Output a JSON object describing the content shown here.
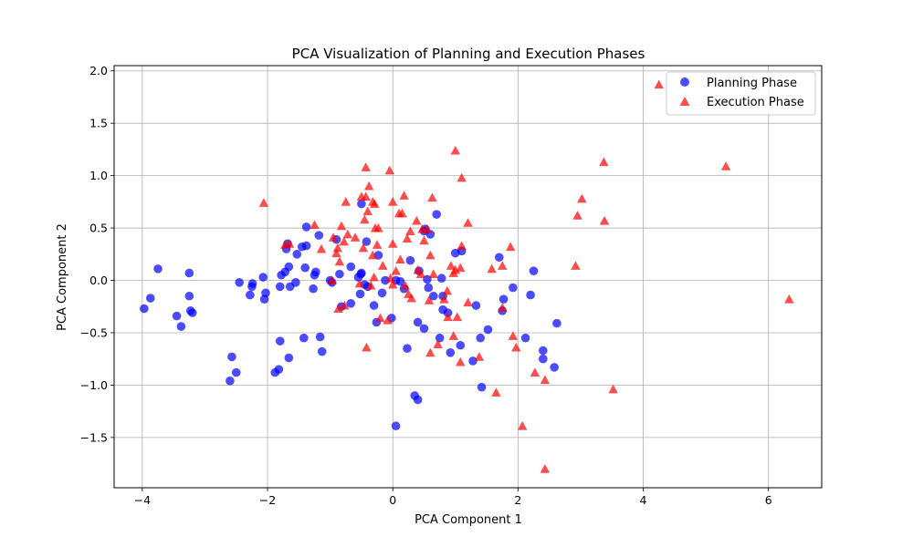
{
  "chart_data": {
    "type": "scatter",
    "title": "PCA Visualization of Planning and Execution Phases",
    "xlabel": "PCA Component 1",
    "ylabel": "PCA Component 2",
    "xlim": [
      -4.45,
      6.85
    ],
    "ylim": [
      -1.98,
      2.05
    ],
    "xticks": [
      -4,
      -2,
      0,
      2,
      4,
      6
    ],
    "xtick_labels": [
      "−4",
      "−2",
      "0",
      "2",
      "4",
      "6"
    ],
    "yticks": [
      -1.5,
      -1.0,
      -0.5,
      0.0,
      0.5,
      1.0,
      1.5,
      2.0
    ],
    "ytick_labels": [
      "−1.5",
      "−1.0",
      "−0.5",
      "0.0",
      "0.5",
      "1.0",
      "1.5",
      "2.0"
    ],
    "grid": true,
    "legend_position": "top-right",
    "series": [
      {
        "name": "Planning Phase",
        "marker": "circle",
        "color": "#0000ff",
        "points": [
          [
            -3.97,
            -0.27
          ],
          [
            -3.87,
            -0.17
          ],
          [
            -3.75,
            0.11
          ],
          [
            -3.45,
            -0.34
          ],
          [
            -3.38,
            -0.44
          ],
          [
            -3.25,
            -0.15
          ],
          [
            -3.25,
            0.07
          ],
          [
            -3.23,
            -0.29
          ],
          [
            -3.2,
            -0.31
          ],
          [
            -2.6,
            -0.96
          ],
          [
            -2.57,
            -0.73
          ],
          [
            -2.5,
            -0.88
          ],
          [
            -2.45,
            -0.02
          ],
          [
            -2.28,
            -0.14
          ],
          [
            -2.25,
            -0.06
          ],
          [
            -2.24,
            -0.03
          ],
          [
            -2.07,
            0.03
          ],
          [
            -2.05,
            -0.18
          ],
          [
            -2.03,
            -0.12
          ],
          [
            -1.88,
            -0.88
          ],
          [
            -1.82,
            -0.85
          ],
          [
            -1.8,
            -0.58
          ],
          [
            -1.8,
            -0.06
          ],
          [
            -1.78,
            0.05
          ],
          [
            -1.72,
            0.08
          ],
          [
            -1.7,
            0.3
          ],
          [
            -1.68,
            0.35
          ],
          [
            -1.66,
            -0.74
          ],
          [
            -1.66,
            0.13
          ],
          [
            -1.64,
            -0.06
          ],
          [
            -1.55,
            -0.02
          ],
          [
            -1.53,
            0.25
          ],
          [
            -1.45,
            0.32
          ],
          [
            -1.42,
            -0.55
          ],
          [
            -1.4,
            0.12
          ],
          [
            -1.38,
            0.51
          ],
          [
            -1.38,
            0.33
          ],
          [
            -1.27,
            -0.08
          ],
          [
            -1.25,
            0.05
          ],
          [
            -1.23,
            0.08
          ],
          [
            -1.18,
            0.43
          ],
          [
            -1.16,
            -0.54
          ],
          [
            -1.13,
            -0.68
          ],
          [
            -1.0,
            0.0
          ],
          [
            -0.97,
            -0.02
          ],
          [
            -0.9,
            0.39
          ],
          [
            -0.85,
            0.06
          ],
          [
            -0.82,
            -0.25
          ],
          [
            -0.67,
            -0.22
          ],
          [
            -0.67,
            0.13
          ],
          [
            -0.55,
            0.03
          ],
          [
            -0.52,
            -0.13
          ],
          [
            -0.51,
            0.06
          ],
          [
            -0.5,
            0.07
          ],
          [
            -0.5,
            0.73
          ],
          [
            -0.45,
            -0.04
          ],
          [
            -0.42,
            0.37
          ],
          [
            -0.4,
            -0.06
          ],
          [
            -0.3,
            -0.24
          ],
          [
            -0.26,
            -0.4
          ],
          [
            -0.23,
            0.24
          ],
          [
            -0.17,
            -0.12
          ],
          [
            -0.12,
            0.0
          ],
          [
            -0.02,
            -0.36
          ],
          [
            0.05,
            -1.39
          ],
          [
            0.05,
            0.0
          ],
          [
            0.12,
            -0.01
          ],
          [
            0.18,
            -0.08
          ],
          [
            0.23,
            -0.65
          ],
          [
            0.28,
            0.19
          ],
          [
            0.35,
            -1.1
          ],
          [
            0.4,
            -0.4
          ],
          [
            0.4,
            -1.14
          ],
          [
            0.42,
            0.09
          ],
          [
            0.5,
            -0.46
          ],
          [
            0.5,
            0.47
          ],
          [
            0.52,
            0.49
          ],
          [
            0.55,
            0.01
          ],
          [
            0.57,
            -0.07
          ],
          [
            0.6,
            0.44
          ],
          [
            0.65,
            -0.15
          ],
          [
            0.7,
            0.63
          ],
          [
            0.75,
            -0.55
          ],
          [
            0.78,
            0.02
          ],
          [
            0.8,
            -0.15
          ],
          [
            0.8,
            -0.28
          ],
          [
            0.88,
            -0.31
          ],
          [
            0.92,
            -0.69
          ],
          [
            1.0,
            0.26
          ],
          [
            1.08,
            -0.62
          ],
          [
            1.1,
            0.28
          ],
          [
            1.28,
            -0.77
          ],
          [
            1.33,
            -0.24
          ],
          [
            1.4,
            -0.55
          ],
          [
            1.42,
            -1.02
          ],
          [
            1.52,
            -0.47
          ],
          [
            1.7,
            0.22
          ],
          [
            1.75,
            -0.29
          ],
          [
            1.77,
            -0.18
          ],
          [
            1.92,
            -0.07
          ],
          [
            2.12,
            -0.55
          ],
          [
            2.2,
            -0.14
          ],
          [
            2.25,
            0.09
          ],
          [
            2.4,
            -0.67
          ],
          [
            2.4,
            -0.75
          ],
          [
            2.58,
            -0.83
          ],
          [
            2.62,
            -0.41
          ]
        ]
      },
      {
        "name": "Execution Phase",
        "marker": "triangle",
        "color": "#ff0000",
        "points": [
          [
            -2.06,
            0.74
          ],
          [
            -1.72,
            0.34
          ],
          [
            -1.65,
            0.35
          ],
          [
            -1.25,
            0.53
          ],
          [
            -1.14,
            0.3
          ],
          [
            -0.97,
            0.0
          ],
          [
            -0.95,
            0.41
          ],
          [
            -0.9,
            0.26
          ],
          [
            -0.88,
            0.31
          ],
          [
            -0.87,
            -0.27
          ],
          [
            -0.85,
            0.18
          ],
          [
            -0.82,
            0.52
          ],
          [
            -0.78,
            0.37
          ],
          [
            -0.77,
            -0.24
          ],
          [
            -0.75,
            0.75
          ],
          [
            -0.72,
            0.44
          ],
          [
            -0.6,
            0.41
          ],
          [
            -0.53,
            -0.03
          ],
          [
            -0.5,
            0.8
          ],
          [
            -0.47,
            0.31
          ],
          [
            -0.45,
            0.58
          ],
          [
            -0.43,
            1.08
          ],
          [
            -0.43,
            0.8
          ],
          [
            -0.42,
            -0.64
          ],
          [
            -0.4,
            0.66
          ],
          [
            -0.38,
            0.9
          ],
          [
            -0.35,
            -0.05
          ],
          [
            -0.32,
            0.24
          ],
          [
            -0.32,
            0.75
          ],
          [
            -0.3,
            0.03
          ],
          [
            -0.29,
            0.73
          ],
          [
            -0.28,
            0.5
          ],
          [
            -0.25,
            0.34
          ],
          [
            -0.23,
            0.5
          ],
          [
            -0.2,
            -0.36
          ],
          [
            -0.16,
            0.14
          ],
          [
            -0.08,
            -0.38
          ],
          [
            -0.05,
            1.05
          ],
          [
            -0.04,
            0.02
          ],
          [
            0.0,
            0.75
          ],
          [
            0.0,
            0.35
          ],
          [
            0.0,
            -0.04
          ],
          [
            0.05,
            0.09
          ],
          [
            0.1,
            0.64
          ],
          [
            0.12,
            0.2
          ],
          [
            0.15,
            0.64
          ],
          [
            0.18,
            0.81
          ],
          [
            0.2,
            -0.05
          ],
          [
            0.23,
            0.4
          ],
          [
            0.25,
            -0.13
          ],
          [
            0.28,
            0.47
          ],
          [
            0.3,
            -0.17
          ],
          [
            0.38,
            0.57
          ],
          [
            0.4,
            0.1
          ],
          [
            0.45,
            0.06
          ],
          [
            0.47,
            0.49
          ],
          [
            0.5,
            0.38
          ],
          [
            0.55,
            0.49
          ],
          [
            0.58,
            -0.19
          ],
          [
            0.6,
            -0.69
          ],
          [
            0.6,
            0.24
          ],
          [
            0.63,
            0.79
          ],
          [
            0.65,
            0.06
          ],
          [
            0.72,
            -0.61
          ],
          [
            0.82,
            -0.18
          ],
          [
            0.87,
            -0.1
          ],
          [
            0.88,
            -0.35
          ],
          [
            0.93,
            0.14
          ],
          [
            0.97,
            -0.53
          ],
          [
            0.97,
            0.07
          ],
          [
            1.0,
            1.24
          ],
          [
            1.0,
            0.1
          ],
          [
            1.03,
            -0.35
          ],
          [
            1.08,
            0.12
          ],
          [
            1.08,
            -0.78
          ],
          [
            1.1,
            0.98
          ],
          [
            1.1,
            0.33
          ],
          [
            1.2,
            0.55
          ],
          [
            1.2,
            -0.21
          ],
          [
            1.38,
            -0.73
          ],
          [
            1.58,
            0.11
          ],
          [
            1.65,
            -1.07
          ],
          [
            1.75,
            0.14
          ],
          [
            1.75,
            -0.26
          ],
          [
            1.88,
            0.32
          ],
          [
            1.92,
            -0.53
          ],
          [
            1.97,
            -0.64
          ],
          [
            2.07,
            -1.39
          ],
          [
            2.27,
            -0.88
          ],
          [
            2.43,
            -0.95
          ],
          [
            2.43,
            -1.8
          ],
          [
            2.92,
            0.14
          ],
          [
            2.95,
            0.62
          ],
          [
            3.02,
            0.78
          ],
          [
            3.37,
            1.13
          ],
          [
            3.38,
            0.57
          ],
          [
            3.52,
            -1.04
          ],
          [
            4.25,
            1.87
          ],
          [
            5.32,
            1.09
          ],
          [
            6.33,
            -0.18
          ]
        ]
      }
    ]
  }
}
